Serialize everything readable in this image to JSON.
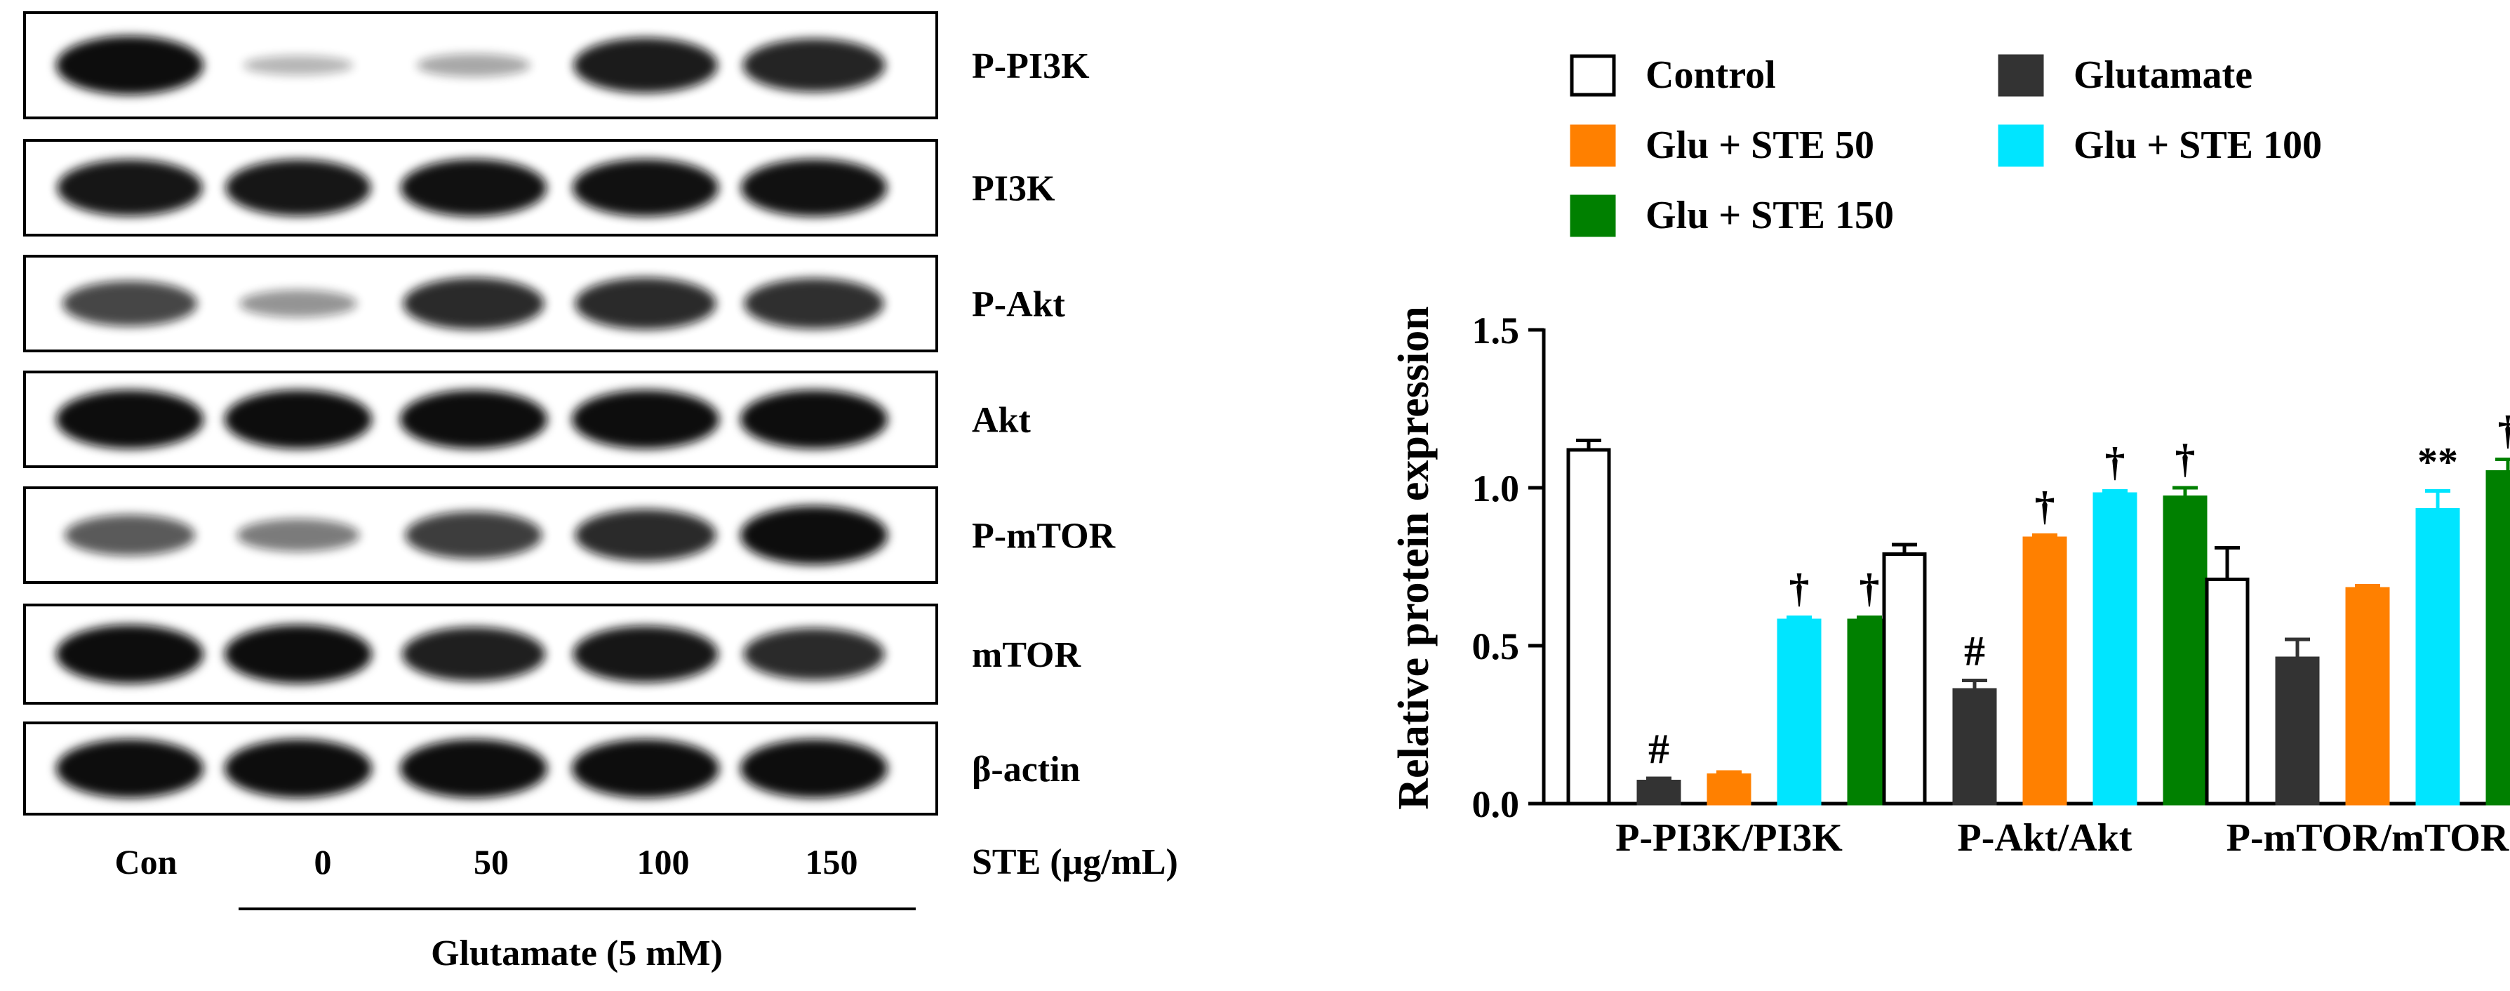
{
  "figure": {
    "western_blot": {
      "blots": [
        {
          "label": "P-PI3K",
          "intensities": [
            1.0,
            0.12,
            0.2,
            0.92,
            0.88
          ]
        },
        {
          "label": "PI3K",
          "intensities": [
            0.95,
            0.95,
            0.97,
            0.97,
            0.97
          ]
        },
        {
          "label": "P-Akt",
          "intensities": [
            0.7,
            0.3,
            0.85,
            0.85,
            0.82
          ]
        },
        {
          "label": "Akt",
          "intensities": [
            1.0,
            1.0,
            1.0,
            1.0,
            1.0
          ]
        },
        {
          "label": "P-mTOR",
          "intensities": [
            0.6,
            0.42,
            0.75,
            0.85,
            1.0
          ]
        },
        {
          "label": "mTOR",
          "intensities": [
            1.0,
            1.0,
            0.9,
            0.95,
            0.85
          ]
        },
        {
          "label": "β-actin",
          "intensities": [
            1.0,
            1.0,
            1.0,
            1.0,
            1.0
          ]
        }
      ],
      "lane_labels": [
        "Con",
        "0",
        "50",
        "100",
        "150"
      ],
      "dose_label": "STE (μg/mL)",
      "treatment_label": "Glutamate (5 mM)"
    },
    "colors": {
      "control": "#ffffff",
      "glutamate": "#333333",
      "ste50": "#ff8000",
      "ste100": "#00e5ff",
      "ste150": "#008000"
    }
  },
  "chart_data": {
    "type": "bar",
    "title": "",
    "xlabel": "",
    "ylabel": "Relative protein expression",
    "ylim": [
      0,
      1.5
    ],
    "yticks": [
      "0.0",
      "0.5",
      "1.0",
      "1.5"
    ],
    "grid": false,
    "legend_position": "top",
    "categories": [
      "P-PI3K/PI3K",
      "P-Akt/Akt",
      "P-mTOR/mTOR"
    ],
    "series": [
      {
        "name": "Control",
        "values": [
          1.12,
          0.79,
          0.71
        ],
        "errors": [
          0.03,
          0.03,
          0.1
        ],
        "annotations": [
          "",
          "",
          ""
        ]
      },
      {
        "name": "Glutamate",
        "values": [
          0.07,
          0.36,
          0.46
        ],
        "errors": [
          0.01,
          0.03,
          0.06
        ],
        "annotations": [
          "#",
          "#",
          ""
        ]
      },
      {
        "name": "Glu + STE 50",
        "values": [
          0.09,
          0.84,
          0.68
        ],
        "errors": [
          0.01,
          0.01,
          0.01
        ],
        "annotations": [
          "",
          "†",
          ""
        ]
      },
      {
        "name": "Glu + STE 100",
        "values": [
          0.58,
          0.98,
          0.93
        ],
        "errors": [
          0.01,
          0.01,
          0.06
        ],
        "annotations": [
          "†",
          "†",
          "**"
        ]
      },
      {
        "name": "Glu + STE 150",
        "values": [
          0.58,
          0.97,
          1.05
        ],
        "errors": [
          0.01,
          0.03,
          0.04
        ],
        "annotations": [
          "†",
          "†",
          "†"
        ]
      }
    ]
  }
}
